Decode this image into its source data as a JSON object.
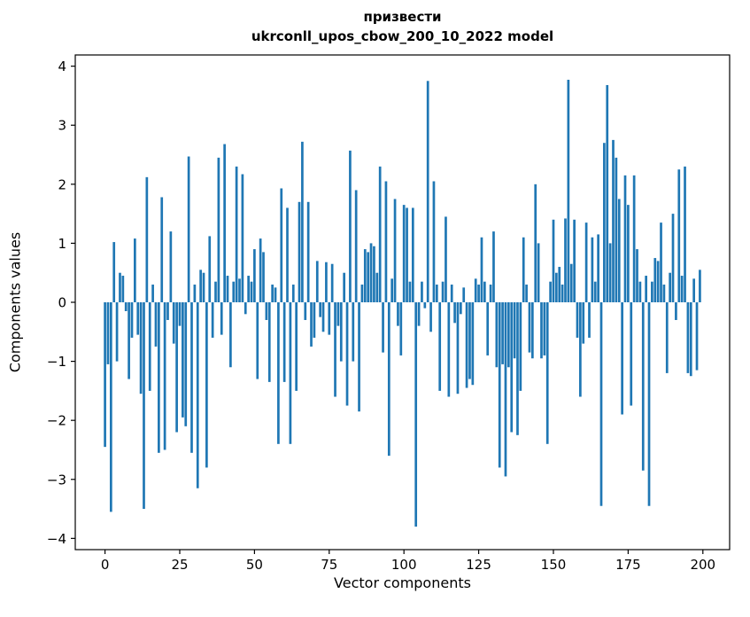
{
  "chart_data": {
    "type": "bar",
    "title_line1": "призвести",
    "title_line2": "ukrconll_upos_cbow_200_10_2022 model",
    "xlabel": "Vector components",
    "ylabel": "Components values",
    "bar_color": "#1f77b4",
    "axis_color": "#000000",
    "xlim": [
      -9.95,
      208.95
    ],
    "ylim": [
      -4.19,
      4.19
    ],
    "xticks": [
      0,
      25,
      50,
      75,
      100,
      125,
      150,
      175,
      200
    ],
    "yticks": [
      -4,
      -3,
      -2,
      -1,
      0,
      1,
      2,
      3,
      4
    ],
    "grid": false,
    "legend": null,
    "values": [
      -2.45,
      -1.05,
      -3.55,
      1.02,
      -1.0,
      0.5,
      0.45,
      -0.15,
      -1.3,
      -0.6,
      1.08,
      -0.55,
      -1.55,
      -3.5,
      2.12,
      -1.5,
      0.3,
      -0.75,
      -2.55,
      1.78,
      -2.5,
      -0.3,
      1.2,
      -0.7,
      -2.2,
      -0.4,
      -1.95,
      -2.1,
      2.47,
      -2.55,
      0.3,
      -3.15,
      0.55,
      0.5,
      -2.8,
      1.12,
      -0.6,
      0.35,
      2.45,
      -0.55,
      2.68,
      0.45,
      -1.1,
      0.35,
      2.3,
      0.4,
      2.17,
      -0.2,
      0.45,
      0.35,
      0.9,
      -1.3,
      1.08,
      0.85,
      -0.3,
      -1.35,
      0.3,
      0.25,
      -2.4,
      1.93,
      -1.35,
      1.6,
      -2.4,
      0.3,
      -1.5,
      1.7,
      2.72,
      -0.3,
      1.7,
      -0.75,
      -0.6,
      0.7,
      -0.25,
      -0.5,
      0.68,
      -0.55,
      0.65,
      -1.6,
      -0.4,
      -1.0,
      0.5,
      -1.75,
      2.57,
      -1.0,
      1.9,
      -1.85,
      0.3,
      0.9,
      0.85,
      1.0,
      0.95,
      0.5,
      2.3,
      -0.85,
      2.05,
      -2.6,
      0.4,
      1.75,
      -0.4,
      -0.9,
      1.65,
      1.6,
      0.35,
      1.6,
      -3.8,
      -0.4,
      0.35,
      -0.1,
      3.75,
      -0.5,
      2.05,
      0.3,
      -1.5,
      0.35,
      1.45,
      -1.6,
      0.3,
      -0.35,
      -1.55,
      -0.2,
      0.25,
      -1.45,
      -1.3,
      -1.4,
      0.4,
      0.3,
      1.1,
      0.35,
      -0.9,
      0.3,
      1.2,
      -1.1,
      -2.8,
      -1.05,
      -2.95,
      -1.1,
      -2.2,
      -0.95,
      -2.25,
      -1.5,
      1.1,
      0.3,
      -0.85,
      -0.95,
      2.0,
      1.0,
      -0.95,
      -0.9,
      -2.4,
      0.35,
      1.4,
      0.5,
      0.6,
      0.3,
      1.42,
      3.77,
      0.65,
      1.4,
      -0.6,
      -1.6,
      -0.7,
      1.35,
      -0.6,
      1.1,
      0.35,
      1.15,
      -3.45,
      2.7,
      3.68,
      1.0,
      2.75,
      2.45,
      1.75,
      -1.9,
      2.15,
      1.65,
      -1.75,
      2.15,
      0.9,
      0.35,
      -2.85,
      0.45,
      -3.45,
      0.35,
      0.75,
      0.7,
      1.35,
      0.3,
      -1.2,
      0.5,
      1.5,
      -0.3,
      2.25,
      0.45,
      2.3,
      -1.2,
      -1.25,
      0.4,
      -1.15,
      0.55
    ]
  }
}
